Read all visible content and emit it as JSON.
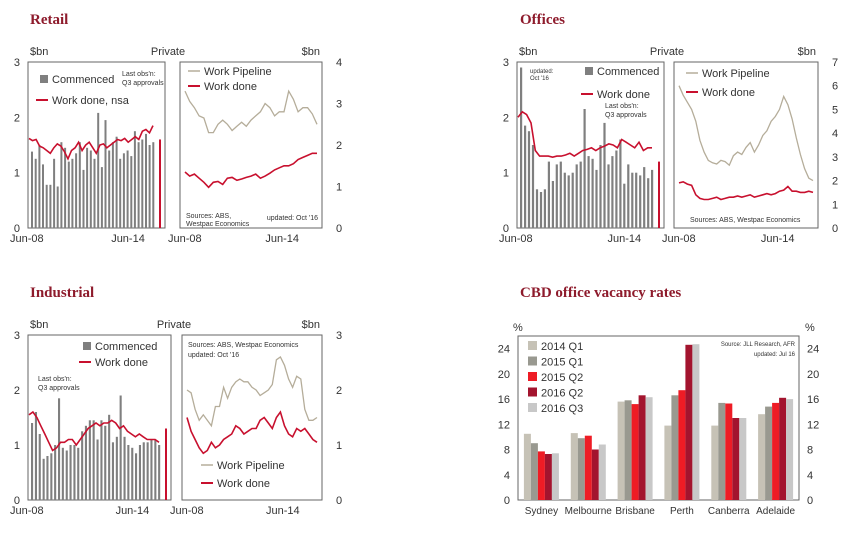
{
  "titles": {
    "retail": "Retail",
    "offices": "Offices",
    "industrial": "Industrial",
    "vacancy": "CBD office vacancy rates"
  },
  "colors": {
    "title": "#8e1b2c",
    "bar": "#7f7f7f",
    "work_done": "#c8102e",
    "pipeline": "#b5ad9a"
  },
  "chart_data": [
    {
      "id": "retail",
      "type": "bar",
      "title": "Retail",
      "ylabel_left": "$bn",
      "ylabel_right": "$bn",
      "header": "Private",
      "ylim_left": [
        0,
        3
      ],
      "yticks_left": [
        0,
        1,
        2,
        3
      ],
      "ylim_right": [
        0,
        4
      ],
      "yticks_right": [
        0,
        1,
        2,
        3,
        4
      ],
      "xticks_left": [
        "Jun-08",
        "Jun-14"
      ],
      "xticks_right": [
        "Jun-08",
        "Jun-14"
      ],
      "annotation": [
        "Last obs'n:",
        "Q3 approvals"
      ],
      "left_series": [
        {
          "name": "Commenced",
          "kind": "bar",
          "values": [
            1.38,
            1.25,
            1.5,
            1.15,
            0.78,
            0.78,
            1.25,
            0.75,
            1.55,
            1.45,
            1.2,
            1.25,
            1.35,
            1.55,
            1.05,
            1.45,
            1.4,
            1.25,
            2.08,
            1.1,
            1.95,
            1.4,
            1.55,
            1.65,
            1.25,
            1.35,
            1.4,
            1.3,
            1.75,
            1.55,
            1.6,
            1.7,
            1.5,
            1.55
          ]
        },
        {
          "name": "Work done, nsa",
          "kind": "line",
          "values": [
            1.62,
            1.58,
            1.6,
            1.48,
            1.45,
            1.4,
            1.35,
            1.45,
            1.52,
            1.48,
            1.38,
            1.25,
            1.4,
            1.45,
            1.55,
            1.4,
            1.5,
            1.55,
            1.45,
            1.35,
            1.5,
            1.52,
            1.45,
            1.5,
            1.55,
            1.6,
            1.58,
            1.62,
            1.55,
            1.6,
            1.65,
            1.6,
            1.75,
            1.78,
            1.72,
            1.85
          ]
        }
      ],
      "left_extra": {
        "label": "Q3 approvals",
        "value": 1.6
      },
      "right_series": [
        {
          "name": "Work Pipeline",
          "kind": "line",
          "values": [
            3.3,
            3.05,
            2.9,
            2.7,
            2.65,
            2.3,
            2.3,
            2.5,
            2.6,
            2.5,
            2.35,
            2.45,
            2.55,
            2.45,
            2.6,
            2.7,
            2.8,
            3.0,
            2.9,
            2.7,
            2.8,
            2.8,
            3.3,
            3.1,
            2.8,
            2.9,
            2.9,
            2.75,
            2.5
          ]
        },
        {
          "name": "Work done",
          "kind": "line",
          "values": [
            1.35,
            1.25,
            1.3,
            1.2,
            1.1,
            0.98,
            1.1,
            1.12,
            1.05,
            1.2,
            1.22,
            1.15,
            1.18,
            1.22,
            1.25,
            1.3,
            1.2,
            1.25,
            1.32,
            1.4,
            1.45,
            1.5,
            1.5,
            1.55,
            1.65,
            1.7,
            1.75,
            1.8,
            1.8
          ]
        }
      ],
      "source": [
        "Sources: ABS,",
        "Westpac Economics"
      ],
      "updated": "updated: Oct '16"
    },
    {
      "id": "offices",
      "type": "bar",
      "title": "Offices",
      "ylabel_left": "$bn",
      "ylabel_right": "$bn",
      "header": "Private",
      "ylim_left": [
        0,
        3
      ],
      "yticks_left": [
        0,
        1,
        2,
        3
      ],
      "ylim_right": [
        0,
        7
      ],
      "yticks_right": [
        0,
        1,
        2,
        3,
        4,
        5,
        6,
        7
      ],
      "xticks_left": [
        "Jun-08",
        "Jun-14"
      ],
      "xticks_right": [
        "Jun-08",
        "Jun-14"
      ],
      "annotation": [
        "Last obs'n:",
        "Q3 approvals"
      ],
      "updated_left": [
        "updated:",
        "Oct '16"
      ],
      "left_series": [
        {
          "name": "Commenced",
          "kind": "bar",
          "values": [
            2.9,
            1.85,
            1.75,
            1.5,
            0.7,
            0.65,
            0.7,
            1.2,
            0.85,
            1.15,
            1.2,
            1.0,
            0.95,
            1.0,
            1.15,
            1.2,
            2.15,
            1.3,
            1.25,
            1.05,
            1.5,
            1.9,
            1.15,
            1.3,
            1.4,
            1.6,
            0.8,
            1.15,
            1.0,
            1.0,
            0.95,
            1.1,
            0.9,
            1.05
          ]
        },
        {
          "name": "Work done",
          "kind": "line",
          "values": [
            2.0,
            2.1,
            2.05,
            1.9,
            1.4,
            1.3,
            1.3,
            1.3,
            1.28,
            1.3,
            1.3,
            1.32,
            1.35,
            1.3,
            1.35,
            1.4,
            1.42,
            1.45,
            1.4,
            1.45,
            1.48,
            1.52,
            1.5,
            1.45,
            1.6,
            1.55,
            1.5,
            1.45,
            1.55,
            1.4,
            1.45,
            1.45
          ]
        }
      ],
      "left_extra": {
        "label": "Q3 approvals",
        "value": 1.2
      },
      "right_series": [
        {
          "name": "Work Pipeline",
          "kind": "line",
          "values": [
            6.0,
            5.6,
            5.3,
            5.0,
            4.5,
            3.7,
            3.2,
            2.85,
            2.75,
            2.7,
            2.85,
            2.8,
            2.65,
            3.05,
            3.2,
            3.1,
            3.4,
            3.6,
            3.2,
            3.5,
            3.9,
            4.1,
            4.5,
            4.7,
            5.0,
            5.55,
            5.2,
            4.6,
            3.8,
            3.1,
            2.5,
            2.1,
            2.0
          ]
        },
        {
          "name": "Work done",
          "kind": "line",
          "values": [
            1.9,
            1.95,
            1.85,
            1.8,
            1.4,
            1.25,
            1.2,
            1.2,
            1.25,
            1.3,
            1.2,
            1.25,
            1.3,
            1.3,
            1.35,
            1.3,
            1.35,
            1.4,
            1.3,
            1.35,
            1.4,
            1.45,
            1.4,
            1.45,
            1.55,
            1.6,
            1.75,
            1.55,
            1.55,
            1.5,
            1.5,
            1.55,
            1.5
          ]
        }
      ],
      "source": [
        "Sources: ABS, Westpac Economics"
      ]
    },
    {
      "id": "industrial",
      "type": "bar",
      "title": "Industrial",
      "ylabel_left": "$bn",
      "ylabel_right": "$bn",
      "header": "Private",
      "ylim_left": [
        0,
        3
      ],
      "yticks_left": [
        0,
        1,
        2,
        3
      ],
      "ylim_right": [
        0,
        3
      ],
      "yticks_right": [
        0,
        1,
        2,
        3
      ],
      "xticks_left": [
        "Jun-08",
        "Jun-14"
      ],
      "xticks_right": [
        "Jun-08",
        "Jun-14"
      ],
      "annotation": [
        "Last obs'n:",
        "Q3 approvals"
      ],
      "left_series": [
        {
          "name": "Commenced",
          "kind": "bar",
          "values": [
            1.4,
            1.6,
            1.2,
            0.75,
            0.8,
            0.85,
            1.0,
            1.85,
            0.95,
            0.9,
            1.0,
            1.0,
            0.95,
            1.25,
            1.35,
            1.45,
            1.45,
            1.1,
            1.45,
            1.35,
            1.55,
            1.05,
            1.15,
            1.9,
            1.15,
            1.0,
            0.95,
            0.85,
            1.0,
            1.05,
            1.05,
            1.1,
            1.1,
            1.0
          ]
        },
        {
          "name": "Work done",
          "kind": "line",
          "values": [
            1.55,
            1.6,
            1.5,
            1.35,
            1.2,
            1.05,
            0.9,
            0.95,
            1.05,
            1.05,
            1.1,
            1.1,
            1.0,
            1.1,
            1.2,
            1.3,
            1.35,
            1.4,
            1.35,
            1.4,
            1.4,
            1.45,
            1.4,
            1.3,
            1.35,
            1.25,
            1.2,
            1.15,
            1.2,
            1.15,
            1.1,
            1.1,
            1.1,
            1.05
          ]
        }
      ],
      "left_extra": {
        "label": "Q3 approvals",
        "value": 1.3
      },
      "right_series": [
        {
          "name": "Work Pipeline",
          "kind": "line",
          "values": [
            2.0,
            1.95,
            1.65,
            1.45,
            1.55,
            1.45,
            1.35,
            1.7,
            1.7,
            2.05,
            1.85,
            2.05,
            2.15,
            2.2,
            2.15,
            2.15,
            2.05,
            2.0,
            1.9,
            1.95,
            2.0,
            2.1,
            2.55,
            2.6,
            2.45,
            2.2,
            2.05,
            2.25,
            2.2,
            1.65,
            1.45,
            1.45,
            1.5
          ]
        },
        {
          "name": "Work done",
          "kind": "line",
          "values": [
            1.5,
            1.25,
            1.1,
            0.95,
            0.85,
            0.9,
            1.05,
            0.95,
            1.0,
            1.1,
            1.15,
            1.2,
            1.35,
            1.3,
            1.2,
            1.25,
            1.3,
            1.3,
            1.45,
            1.5,
            1.4,
            1.3,
            1.5,
            1.6,
            1.35,
            1.2,
            1.15,
            1.3,
            1.25,
            1.3,
            1.2,
            1.1,
            1.05
          ]
        }
      ],
      "source": [
        "Sources: ABS, Westpac Economics"
      ],
      "updated": "updated: Oct '16"
    },
    {
      "id": "vacancy",
      "type": "bar",
      "title": "CBD office vacancy rates",
      "ylabel_left": "%",
      "ylabel_right": "%",
      "ylim": [
        0,
        26
      ],
      "yticks": [
        0,
        4,
        8,
        12,
        16,
        20,
        24
      ],
      "categories": [
        "Sydney",
        "Melbourne",
        "Brisbane",
        "Perth",
        "Canberra",
        "Adelaide"
      ],
      "series": [
        {
          "name": "2014 Q1",
          "color": "#c6c2b6",
          "values": [
            10.5,
            10.6,
            15.6,
            11.8,
            11.8,
            13.6
          ]
        },
        {
          "name": "2015 Q1",
          "color": "#999990",
          "values": [
            9.0,
            9.8,
            15.8,
            16.6,
            15.4,
            14.8
          ]
        },
        {
          "name": "2015 Q2",
          "color": "#ee1c25",
          "values": [
            7.7,
            10.2,
            15.2,
            17.4,
            15.3,
            15.4
          ]
        },
        {
          "name": "2016 Q2",
          "color": "#a3142e",
          "values": [
            7.3,
            8.0,
            16.6,
            24.6,
            13.0,
            16.2
          ]
        },
        {
          "name": "2016 Q3",
          "color": "#c8c8c8",
          "values": [
            7.4,
            8.8,
            16.3,
            24.7,
            13.0,
            16.0
          ]
        }
      ],
      "source": "Source: JLL Research, AFR",
      "updated": "updated: Jul 16"
    }
  ]
}
